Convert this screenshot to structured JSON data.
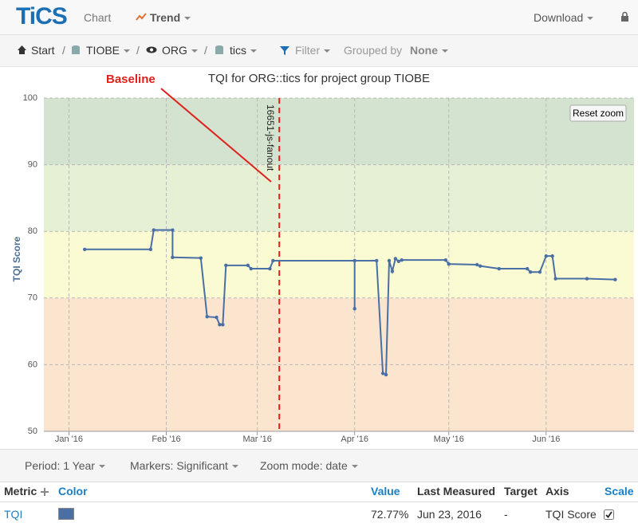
{
  "nav": {
    "logo": "TiCS",
    "items": [
      "Chart",
      "Trend"
    ],
    "download": "Download"
  },
  "breadcrumb": {
    "items": [
      "Start",
      "TIOBE",
      "ORG",
      "tics"
    ],
    "separator": "/",
    "filter": "Filter",
    "grouped_by": "Grouped by",
    "group": "None"
  },
  "chart_data": {
    "type": "line",
    "title": "TQI for ORG::tics for project group TIOBE",
    "y_label": "TQI Score",
    "x": [
      6,
      27,
      28,
      34,
      34,
      43,
      45,
      48,
      49,
      50,
      51,
      58,
      59,
      65,
      66,
      92,
      92,
      92,
      99,
      101,
      102,
      103,
      104,
      105,
      106,
      107,
      121,
      122,
      131,
      132,
      138,
      147,
      148,
      151,
      153,
      155,
      156,
      166,
      175
    ],
    "series": [
      {
        "name": "TQI",
        "color": "#4a6fa5",
        "values": [
          77.3,
          77.3,
          80.2,
          80.2,
          76.1,
          76.0,
          67.2,
          67.1,
          66.0,
          66.0,
          74.9,
          74.9,
          74.4,
          74.4,
          75.6,
          75.6,
          68.4,
          75.6,
          75.6,
          58.7,
          58.5,
          75.6,
          74.0,
          75.9,
          75.5,
          75.7,
          75.7,
          75.1,
          75.0,
          74.8,
          74.4,
          74.4,
          73.9,
          73.9,
          76.3,
          76.3,
          72.9,
          72.9,
          72.77
        ]
      }
    ],
    "xlim": [
      -7,
      181
    ],
    "xticks": [
      {
        "value": 1,
        "label": "Jan '16"
      },
      {
        "value": 32,
        "label": "Feb '16"
      },
      {
        "value": 61,
        "label": "Mar '16"
      },
      {
        "value": 92,
        "label": "Apr '16"
      },
      {
        "value": 122,
        "label": "May '16"
      },
      {
        "value": 153,
        "label": "Jun '16"
      }
    ],
    "ylim": [
      50,
      100
    ],
    "yticks": [
      50,
      60,
      70,
      80,
      90,
      100
    ],
    "grid": true,
    "bands": [
      {
        "from": 90,
        "to": 100,
        "color": "#d3e3cf"
      },
      {
        "from": 80,
        "to": 90,
        "color": "#e5f0d4"
      },
      {
        "from": 70,
        "to": 80,
        "color": "#fbfbd3"
      },
      {
        "from": 50,
        "to": 70,
        "color": "#fce5cf"
      }
    ],
    "baseline": {
      "x": 68,
      "label": "16651-js-fanout",
      "color": "#e0201b"
    },
    "annotation": "Baseline",
    "reset_zoom": "Reset zoom"
  },
  "controls": [
    "Period: 1 Year",
    "Markers: Significant",
    "Zoom mode: date"
  ],
  "table": {
    "header": [
      "Metric",
      "Color",
      "Value",
      "Last Measured",
      "Target",
      "Axis",
      "Scale"
    ],
    "row": {
      "value": "72.77%",
      "last": "Jun 23, 2016",
      "target": "-",
      "axis": "TQI Score"
    }
  }
}
